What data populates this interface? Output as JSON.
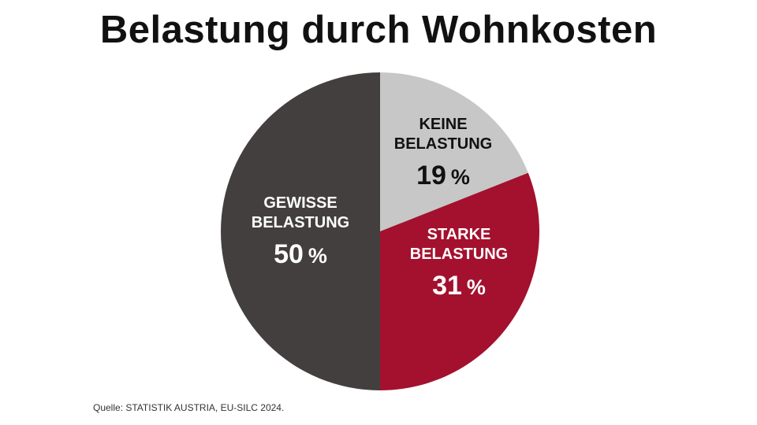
{
  "chart_data": {
    "type": "pie",
    "title": "Belastung durch Wohnkosten",
    "start_angle_deg": 0,
    "direction": "clockwise",
    "slices": [
      {
        "label_lines": [
          "KEINE",
          "BELASTUNG"
        ],
        "value": 19,
        "value_text": "19",
        "unit": "%",
        "color": "#c7c7c7",
        "text_color": "#111111"
      },
      {
        "label_lines": [
          "STARKE",
          "BELASTUNG"
        ],
        "value": 31,
        "value_text": "31",
        "unit": "%",
        "color": "#a3112e",
        "text_color": "#ffffff"
      },
      {
        "label_lines": [
          "GEWISSE",
          "BELASTUNG"
        ],
        "value": 50,
        "value_text": "50",
        "unit": "%",
        "color": "#433f3f",
        "text_color": "#ffffff"
      }
    ]
  },
  "source": "Quelle: STATISTIK AUSTRIA, EU-SILC 2024."
}
